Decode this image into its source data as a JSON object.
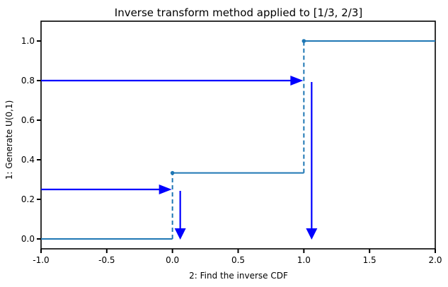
{
  "chart_data": {
    "type": "line",
    "title": "Inverse transform method applied to [1/3, 2/3]",
    "xlabel": "2: Find the inverse CDF",
    "ylabel": "1: Generate  U(0,1)",
    "xlim": [
      -1.0,
      2.0
    ],
    "ylim": [
      -0.05,
      1.1
    ],
    "x_ticks": [
      -1.0,
      -0.5,
      0.0,
      0.5,
      1.0,
      1.5,
      2.0
    ],
    "x_tick_labels": [
      "-1.0",
      "-0.5",
      "0.0",
      "0.5",
      "1.0",
      "1.5",
      "2.0"
    ],
    "y_ticks": [
      0.0,
      0.2,
      0.4,
      0.6,
      0.8,
      1.0
    ],
    "y_tick_labels": [
      "0.0",
      "0.2",
      "0.4",
      "0.6",
      "0.8",
      "1.0"
    ],
    "grid": false,
    "line_color": "#1f77b4",
    "arrow_color": "#0000ff",
    "steps": [
      {
        "x_start": -1.0,
        "x_end": 0.0,
        "y": 0.0
      },
      {
        "x_start": 0.0,
        "x_end": 1.0,
        "y": 0.3333
      },
      {
        "x_start": 1.0,
        "x_end": 2.0,
        "y": 1.0
      }
    ],
    "jumps": [
      {
        "x": 0.0,
        "y_from": 0.0,
        "y_to": 0.3333
      },
      {
        "x": 1.0,
        "y_from": 0.3333,
        "y_to": 1.0
      }
    ],
    "points": [
      {
        "x": 0.0,
        "y": 0.3333
      },
      {
        "x": 1.0,
        "y": 1.0
      }
    ],
    "arrows": [
      {
        "u": 0.25,
        "x_hit": 0.0
      },
      {
        "u": 0.8,
        "x_hit": 1.0
      }
    ]
  }
}
